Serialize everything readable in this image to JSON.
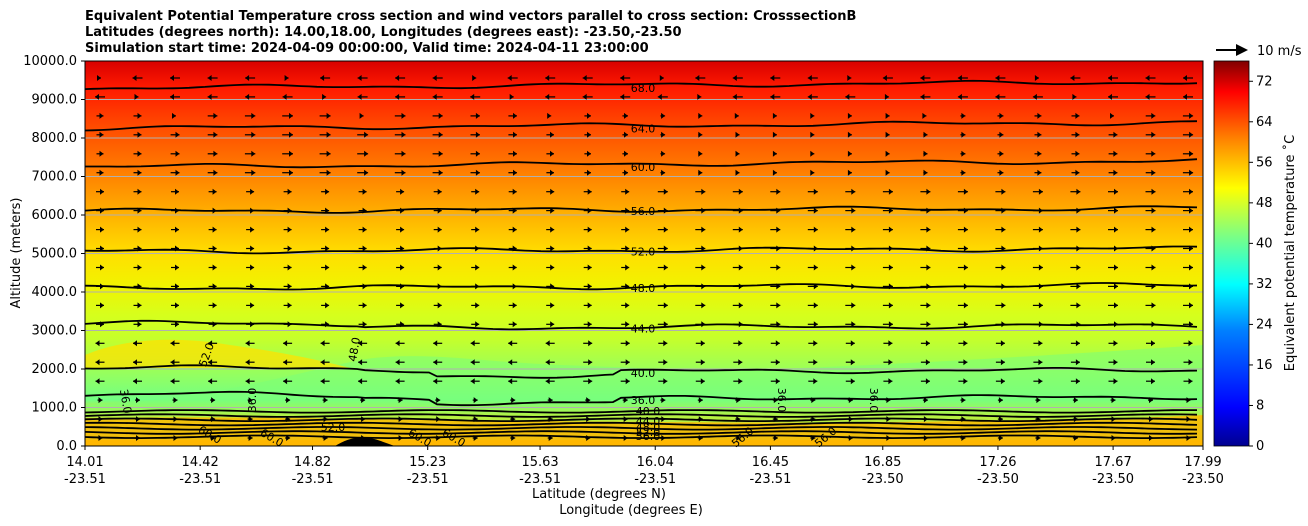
{
  "title": {
    "line1": "Equivalent Potential Temperature cross section and wind vectors parallel to cross section: CrosssectionB",
    "line2": "Latitudes (degrees north): 14.00,18.00, Longitudes (degrees east): -23.50,-23.50",
    "line3": "Simulation start time: 2024-04-09 00:00:00, Valid time: 2024-04-11 23:00:00"
  },
  "chart_data": {
    "type": "contour",
    "ylabel": "Altitude (meters)",
    "xlabel_line1": "Latitude (degrees N)",
    "xlabel_line2": "Longitude (degrees E)",
    "ylim": [
      0,
      10000
    ],
    "y_ticks": [
      "0.0",
      "1000.0",
      "2000.0",
      "3000.0",
      "4000.0",
      "5000.0",
      "6000.0",
      "7000.0",
      "8000.0",
      "9000.0",
      "10000.0"
    ],
    "x_ticks_lat": [
      "14.01",
      "14.42",
      "14.82",
      "15.23",
      "15.63",
      "16.04",
      "16.45",
      "16.85",
      "17.26",
      "17.67",
      "17.99"
    ],
    "x_ticks_lon": [
      "-23.51",
      "-23.51",
      "-23.51",
      "-23.51",
      "-23.51",
      "-23.51",
      "-23.51",
      "-23.50",
      "-23.50",
      "-23.50",
      "-23.50"
    ],
    "x_tick_lat_values": [
      14.01,
      14.42,
      14.82,
      15.23,
      15.63,
      16.04,
      16.45,
      16.85,
      17.26,
      17.67,
      17.99
    ],
    "grid": true,
    "colorbar": {
      "label": "Equivalent potential temperature ˚C",
      "ticks": [
        "0",
        "8",
        "16",
        "24",
        "32",
        "40",
        "48",
        "56",
        "64",
        "72"
      ],
      "range": [
        0,
        76
      ]
    },
    "quiver_key": "10 m/s",
    "contour_levels": [
      {
        "label": "68.0",
        "altitude": 9300
      },
      {
        "label": "64.0",
        "altitude": 8250
      },
      {
        "label": "60.0",
        "altitude": 7250
      },
      {
        "label": "56.0",
        "altitude": 6100
      },
      {
        "label": "52.0",
        "altitude": 5050
      },
      {
        "label": "48.0",
        "altitude": 4100
      },
      {
        "label": "44.0",
        "altitude": 3050
      },
      {
        "label": "40.0",
        "altitude": 1900
      },
      {
        "label": "36.0",
        "altitude": 1200
      }
    ],
    "other_contour_labels": [
      "52.0",
      "48.0",
      "36.0",
      "36.0",
      "36.0",
      "36.0",
      "40.0",
      "44.0",
      "48.0",
      "52.0",
      "56.0",
      "60.0",
      "60.0",
      "60.0",
      "60.0",
      "56.0",
      "56.0",
      "52.0"
    ]
  },
  "colors": {
    "contour_line": "#000000",
    "grid": "#b0b0b0",
    "terrain": "#000000"
  }
}
